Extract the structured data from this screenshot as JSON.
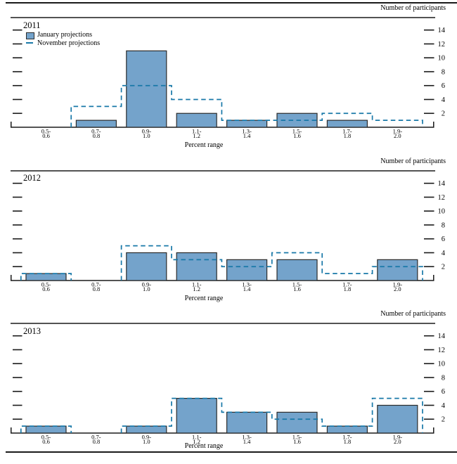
{
  "page": {
    "participants_label": "Number of participants",
    "xlabel": "Percent range"
  },
  "legend": {
    "january_label": "January projections",
    "november_label": "November projections"
  },
  "colors": {
    "bar_fill": "#74A3CB",
    "bar_stroke": "#2B2B2B",
    "november_dash": "#1878A8",
    "axis": "#1A1A1A",
    "text": "#000000"
  },
  "chart_data": [
    {
      "type": "bar",
      "title": "2011",
      "ylabel": "Number of participants",
      "xlabel": "Percent range",
      "categories": [
        "0.5-0.6",
        "0.7-0.8",
        "0.9-1.0",
        "1.1-1.2",
        "1.3-1.4",
        "1.5-1.6",
        "1.7-1.8",
        "1.9-2.0"
      ],
      "series": [
        {
          "name": "January projections",
          "style": "solid-bar",
          "values": [
            0,
            1,
            11,
            2,
            1,
            2,
            1,
            0
          ]
        },
        {
          "name": "November projections",
          "style": "dashed-outline",
          "values": [
            0,
            3,
            6,
            4,
            1,
            1,
            2,
            1
          ]
        }
      ],
      "ylim": [
        0,
        16
      ],
      "y_ticks": [
        2,
        4,
        6,
        8,
        10,
        12,
        14
      ],
      "grid": false,
      "legend_position": "top-left"
    },
    {
      "type": "bar",
      "title": "2012",
      "ylabel": "Number of participants",
      "xlabel": "Percent range",
      "categories": [
        "0.5-0.6",
        "0.7-0.8",
        "0.9-1.0",
        "1.1-1.2",
        "1.3-1.4",
        "1.5-1.6",
        "1.7-1.8",
        "1.9-2.0"
      ],
      "series": [
        {
          "name": "January projections",
          "style": "solid-bar",
          "values": [
            1,
            0,
            4,
            4,
            3,
            3,
            0,
            3
          ]
        },
        {
          "name": "November projections",
          "style": "dashed-outline",
          "values": [
            1,
            0,
            5,
            3,
            2,
            4,
            1,
            2
          ]
        }
      ],
      "ylim": [
        0,
        16
      ],
      "y_ticks": [
        2,
        4,
        6,
        8,
        10,
        12,
        14
      ],
      "grid": false,
      "legend_position": "none"
    },
    {
      "type": "bar",
      "title": "2013",
      "ylabel": "Number of participants",
      "xlabel": "Percent range",
      "categories": [
        "0.5-0.6",
        "0.7-0.8",
        "0.9-1.0",
        "1.1-1.2",
        "1.3-1.4",
        "1.5-1.6",
        "1.7-1.8",
        "1.9-2.0"
      ],
      "series": [
        {
          "name": "January projections",
          "style": "solid-bar",
          "values": [
            1,
            0,
            1,
            5,
            3,
            3,
            1,
            4
          ]
        },
        {
          "name": "November projections",
          "style": "dashed-outline",
          "values": [
            1,
            0,
            1,
            5,
            3,
            2,
            1,
            5
          ]
        }
      ],
      "ylim": [
        0,
        16
      ],
      "y_ticks": [
        2,
        4,
        6,
        8,
        10,
        12,
        14
      ],
      "grid": false,
      "legend_position": "none"
    }
  ]
}
